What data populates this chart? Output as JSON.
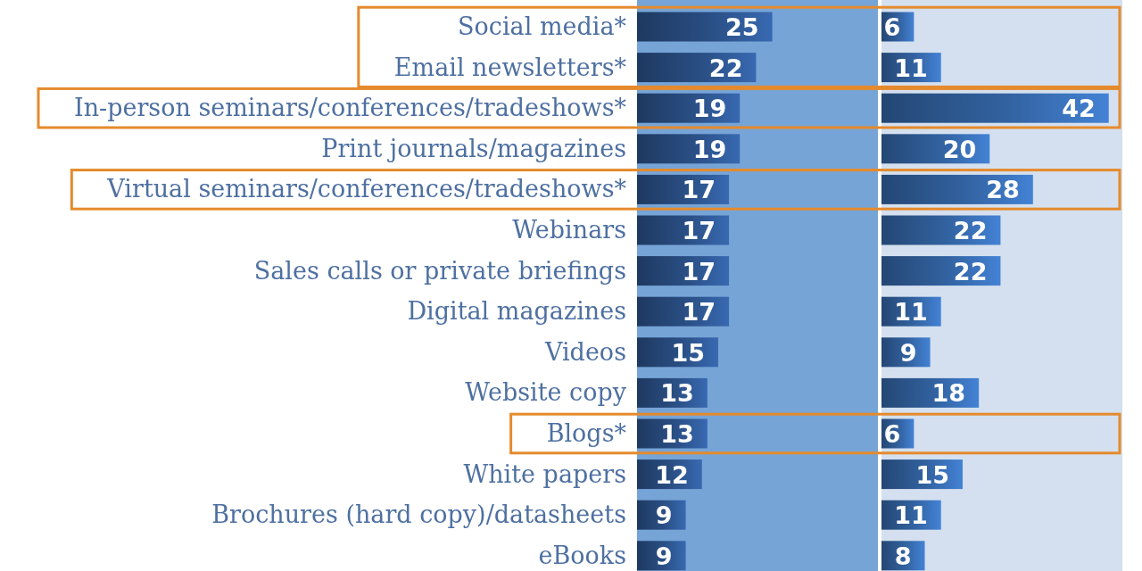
{
  "chart_data": [
    {
      "type": "bar",
      "orientation": "horizontal",
      "tick_labels": "y",
      "categories": [
        "Social media*",
        "Email newsletters*",
        "In-person seminars/conferences/tradeshows*",
        "Print journals/magazines",
        "Virtual seminars/conferences/tradeshows*",
        "Webinars",
        "Sales calls or private briefings",
        "Digital magazines",
        "Videos",
        "Website copy",
        "Blogs*",
        "White papers",
        "Brochures (hard copy)/datasheets",
        "eBooks"
      ],
      "values": [
        25,
        22,
        19,
        19,
        17,
        17,
        17,
        17,
        15,
        13,
        13,
        12,
        9,
        9
      ],
      "color": "#2a4f85",
      "data_labels": true
    },
    {
      "type": "bar",
      "orientation": "horizontal",
      "tick_labels": false,
      "categories": [
        "Social media*",
        "Email newsletters*",
        "In-person seminars/conferences/tradeshows*",
        "Print journals/magazines",
        "Virtual seminars/conferences/tradeshows*",
        "Webinars",
        "Sales calls or private briefings",
        "Digital magazines",
        "Videos",
        "Website copy",
        "Blogs*",
        "White papers",
        "Brochures (hard copy)/datasheets",
        "eBooks"
      ],
      "values": [
        6,
        11,
        42,
        20,
        28,
        22,
        22,
        11,
        9,
        18,
        6,
        15,
        11,
        8
      ],
      "color": "#3262a0",
      "data_labels": true
    }
  ]
}
